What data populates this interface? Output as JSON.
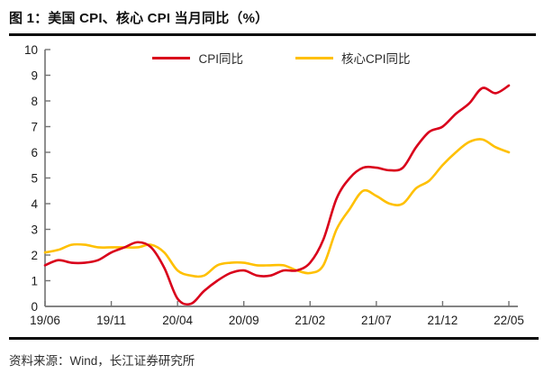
{
  "figure": {
    "title": "图 1：美国 CPI、核心 CPI 当月同比（%）",
    "source": "资料来源：Wind，长江证券研究所"
  },
  "chart_data": {
    "type": "line",
    "title": "美国 CPI、核心 CPI 当月同比（%）",
    "xlabel": "",
    "ylabel": "",
    "ylim": [
      0,
      10
    ],
    "y_ticks": [
      0,
      1,
      2,
      3,
      4,
      5,
      6,
      7,
      8,
      9,
      10
    ],
    "grid": false,
    "legend_position": "top-center",
    "line_smoothing": true,
    "axis_color": "#737373",
    "x": [
      "19/06",
      "19/07",
      "19/08",
      "19/09",
      "19/10",
      "19/11",
      "19/12",
      "20/01",
      "20/02",
      "20/03",
      "20/04",
      "20/05",
      "20/06",
      "20/07",
      "20/08",
      "20/09",
      "20/10",
      "20/11",
      "20/12",
      "21/01",
      "21/02",
      "21/03",
      "21/04",
      "21/05",
      "21/06",
      "21/07",
      "21/08",
      "21/09",
      "21/10",
      "21/11",
      "21/12",
      "22/01",
      "22/02",
      "22/03",
      "22/04",
      "22/05"
    ],
    "x_tick_indices": [
      0,
      5,
      10,
      15,
      20,
      25,
      30,
      35
    ],
    "x_tick_labels": [
      "19/06",
      "19/11",
      "20/04",
      "20/09",
      "21/02",
      "21/07",
      "21/12",
      "22/05"
    ],
    "series": [
      {
        "name": "CPI同比",
        "color": "#D9001B",
        "values": [
          1.6,
          1.8,
          1.7,
          1.7,
          1.8,
          2.1,
          2.3,
          2.5,
          2.3,
          1.5,
          0.3,
          0.1,
          0.6,
          1.0,
          1.3,
          1.4,
          1.2,
          1.2,
          1.4,
          1.4,
          1.7,
          2.6,
          4.2,
          5.0,
          5.4,
          5.4,
          5.3,
          5.4,
          6.2,
          6.8,
          7.0,
          7.5,
          7.9,
          8.5,
          8.3,
          8.6
        ]
      },
      {
        "name": "核心CPI同比",
        "color": "#FFC000",
        "values": [
          2.1,
          2.2,
          2.4,
          2.4,
          2.3,
          2.3,
          2.3,
          2.3,
          2.4,
          2.1,
          1.4,
          1.2,
          1.2,
          1.6,
          1.7,
          1.7,
          1.6,
          1.6,
          1.6,
          1.4,
          1.3,
          1.6,
          3.0,
          3.8,
          4.5,
          4.3,
          4.0,
          4.0,
          4.6,
          4.9,
          5.5,
          6.0,
          6.4,
          6.5,
          6.2,
          6.0
        ]
      }
    ]
  }
}
